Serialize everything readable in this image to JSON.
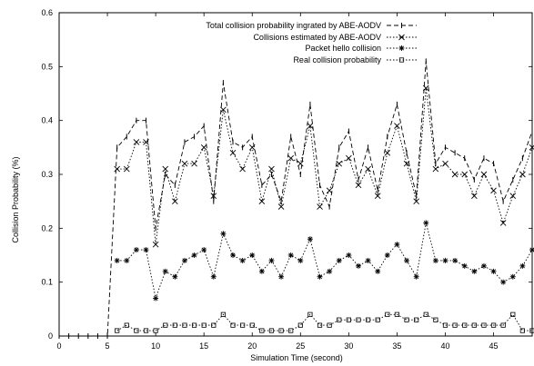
{
  "chart_data": {
    "type": "line",
    "title": "",
    "xlabel": "Simulation Time (second)",
    "ylabel": "Collision Probability (%)",
    "xlim": [
      0,
      49
    ],
    "ylim": [
      0,
      0.6
    ],
    "xticks": [
      0,
      5,
      10,
      15,
      20,
      25,
      30,
      35,
      40,
      45
    ],
    "yticks": [
      0,
      0.1,
      0.2,
      0.3,
      0.4,
      0.5,
      0.6
    ],
    "grid": false,
    "legend_position": "top-right",
    "series": [
      {
        "name": "Total collision probability ingrated by ABE-AODV",
        "style": "dashed",
        "marker": "tick",
        "x": [
          0,
          1,
          2,
          3,
          4,
          5,
          6,
          7,
          8,
          9,
          10,
          11,
          12,
          13,
          14,
          15,
          16,
          17,
          18,
          19,
          20,
          21,
          22,
          23,
          24,
          25,
          26,
          27,
          28,
          29,
          30,
          31,
          32,
          33,
          34,
          35,
          36,
          37,
          38,
          39,
          40,
          41,
          42,
          43,
          44,
          45,
          46,
          47,
          48,
          49
        ],
        "y": [
          0,
          0,
          0,
          0,
          0,
          0,
          0.35,
          0.37,
          0.4,
          0.4,
          0.2,
          0.3,
          0.28,
          0.36,
          0.37,
          0.39,
          0.25,
          0.47,
          0.36,
          0.35,
          0.37,
          0.28,
          0.3,
          0.25,
          0.37,
          0.3,
          0.43,
          0.28,
          0.24,
          0.35,
          0.38,
          0.29,
          0.35,
          0.27,
          0.37,
          0.43,
          0.34,
          0.26,
          0.51,
          0.32,
          0.35,
          0.34,
          0.33,
          0.29,
          0.33,
          0.32,
          0.25,
          0.29,
          0.33,
          0.38
        ]
      },
      {
        "name": "Collisions estimated by ABE-AODV",
        "style": "dotted",
        "marker": "x",
        "x": [
          6,
          7,
          8,
          9,
          10,
          11,
          12,
          13,
          14,
          15,
          16,
          17,
          18,
          19,
          20,
          21,
          22,
          23,
          24,
          25,
          26,
          27,
          28,
          29,
          30,
          31,
          32,
          33,
          34,
          35,
          36,
          37,
          38,
          39,
          40,
          41,
          42,
          43,
          44,
          45,
          46,
          47,
          48,
          49
        ],
        "y": [
          0.31,
          0.31,
          0.36,
          0.36,
          0.17,
          0.31,
          0.25,
          0.32,
          0.32,
          0.35,
          0.26,
          0.42,
          0.34,
          0.31,
          0.35,
          0.25,
          0.31,
          0.24,
          0.33,
          0.32,
          0.39,
          0.24,
          0.27,
          0.32,
          0.33,
          0.28,
          0.31,
          0.26,
          0.34,
          0.39,
          0.32,
          0.25,
          0.46,
          0.31,
          0.32,
          0.3,
          0.3,
          0.26,
          0.3,
          0.27,
          0.21,
          0.26,
          0.3,
          0.35
        ]
      },
      {
        "name": "Packet hello collision",
        "style": "dotted",
        "marker": "star",
        "x": [
          6,
          7,
          8,
          9,
          10,
          11,
          12,
          13,
          14,
          15,
          16,
          17,
          18,
          19,
          20,
          21,
          22,
          23,
          24,
          25,
          26,
          27,
          28,
          29,
          30,
          31,
          32,
          33,
          34,
          35,
          36,
          37,
          38,
          39,
          40,
          41,
          42,
          43,
          44,
          45,
          46,
          47,
          48,
          49
        ],
        "y": [
          0.14,
          0.14,
          0.16,
          0.16,
          0.07,
          0.12,
          0.11,
          0.14,
          0.15,
          0.16,
          0.11,
          0.19,
          0.15,
          0.14,
          0.15,
          0.12,
          0.14,
          0.11,
          0.15,
          0.14,
          0.18,
          0.11,
          0.12,
          0.14,
          0.15,
          0.13,
          0.14,
          0.12,
          0.15,
          0.17,
          0.14,
          0.11,
          0.21,
          0.14,
          0.14,
          0.14,
          0.13,
          0.12,
          0.13,
          0.12,
          0.1,
          0.11,
          0.13,
          0.16
        ]
      },
      {
        "name": "Real collision probability",
        "style": "dotted",
        "marker": "square",
        "x": [
          6,
          7,
          8,
          9,
          10,
          11,
          12,
          13,
          14,
          15,
          16,
          17,
          18,
          19,
          20,
          21,
          22,
          23,
          24,
          25,
          26,
          27,
          28,
          29,
          30,
          31,
          32,
          33,
          34,
          35,
          36,
          37,
          38,
          39,
          40,
          41,
          42,
          43,
          44,
          45,
          46,
          47,
          48,
          49
        ],
        "y": [
          0.01,
          0.02,
          0.01,
          0.01,
          0.01,
          0.02,
          0.02,
          0.02,
          0.02,
          0.02,
          0.02,
          0.04,
          0.02,
          0.02,
          0.02,
          0.01,
          0.01,
          0.01,
          0.01,
          0.02,
          0.04,
          0.02,
          0.02,
          0.03,
          0.03,
          0.03,
          0.03,
          0.03,
          0.04,
          0.04,
          0.03,
          0.03,
          0.04,
          0.03,
          0.02,
          0.02,
          0.02,
          0.02,
          0.02,
          0.02,
          0.02,
          0.04,
          0.01,
          0.01
        ]
      }
    ]
  }
}
